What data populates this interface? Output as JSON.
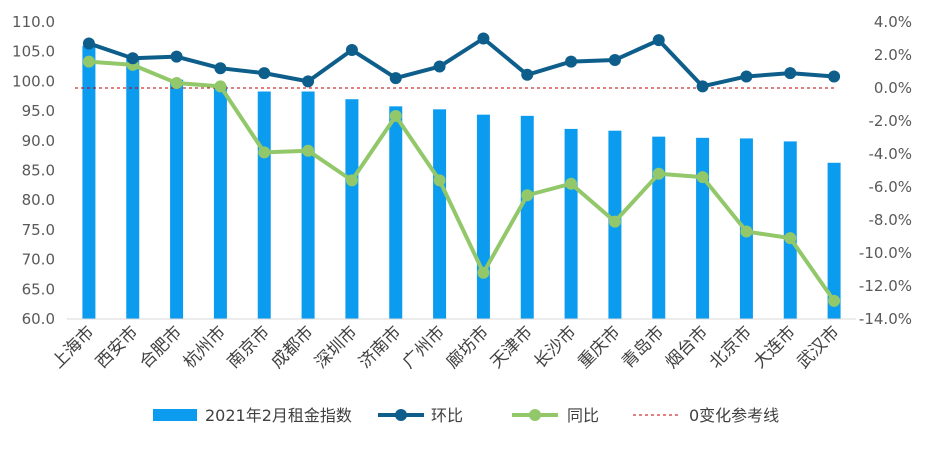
{
  "chart_data": {
    "type": "bar",
    "categories": [
      "上海市",
      "西安市",
      "合肥市",
      "杭州市",
      "南京市",
      "成都市",
      "深圳市",
      "济南市",
      "广州市",
      "廊坊市",
      "天津市",
      "长沙市",
      "重庆市",
      "青岛市",
      "烟台市",
      "北京市",
      "大连市",
      "武汉市"
    ],
    "series": [
      {
        "name": "2021年2月租金指数",
        "kind": "bar",
        "axis": "left",
        "color": "#0b9cf0",
        "values": [
          106.0,
          104.0,
          100.3,
          99.3,
          98.3,
          98.3,
          97.0,
          95.8,
          95.3,
          94.4,
          94.2,
          92.0,
          91.7,
          90.7,
          90.5,
          90.4,
          89.9,
          86.3
        ]
      },
      {
        "name": "环比",
        "kind": "line",
        "axis": "right",
        "color": "#0e5e8c",
        "values": [
          2.7,
          1.8,
          1.9,
          1.2,
          0.9,
          0.4,
          2.3,
          0.6,
          1.3,
          3.0,
          0.8,
          1.6,
          1.7,
          2.9,
          0.1,
          0.7,
          0.9,
          0.7
        ]
      },
      {
        "name": "同比",
        "kind": "line",
        "axis": "right",
        "color": "#92c86a",
        "values": [
          1.6,
          1.4,
          0.3,
          0.1,
          -3.9,
          -3.8,
          -5.6,
          -1.7,
          -5.6,
          -11.2,
          -6.5,
          -5.8,
          -8.1,
          -5.2,
          -5.4,
          -8.7,
          -9.1,
          -12.9
        ]
      }
    ],
    "reference_line": {
      "name": "0变化参考线",
      "value": 0,
      "axis": "right",
      "color": "#c00000"
    },
    "ylim_left": [
      60,
      110
    ],
    "yticks_left": [
      "60.0",
      "65.0",
      "70.0",
      "75.0",
      "80.0",
      "85.0",
      "90.0",
      "95.0",
      "100.0",
      "105.0",
      "110.0"
    ],
    "ylim_right": [
      -14,
      4
    ],
    "yticks_right": [
      "-14.0%",
      "-12.0%",
      "-10.0%",
      "-8.0%",
      "-6.0%",
      "-4.0%",
      "-2.0%",
      "0.0%",
      "2.0%",
      "4.0%"
    ],
    "xlabel": "",
    "ylabel": "",
    "title": "",
    "grid": false,
    "legend": "bottom"
  }
}
